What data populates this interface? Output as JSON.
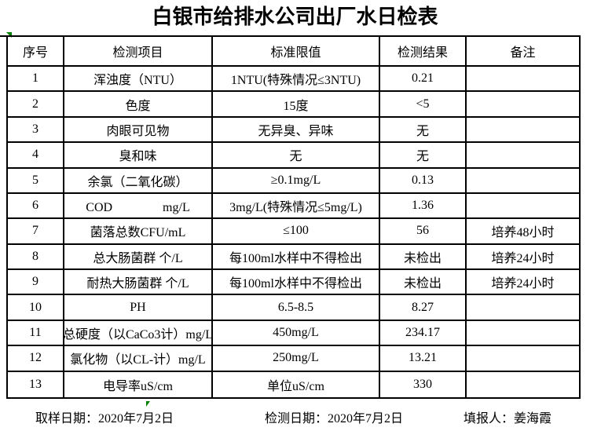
{
  "title": "白银市给排水公司出厂水日检表",
  "table": {
    "headers": [
      "序号",
      "检测项目",
      "标准限值",
      "检测结果",
      "备注"
    ],
    "rows": [
      {
        "no": "1",
        "item": "浑浊度（NTU）",
        "standard": "1NTU(特殊情况≤3NTU)",
        "result": "0.21",
        "remark": ""
      },
      {
        "no": "2",
        "item": "色度",
        "standard": "15度",
        "result": "<5",
        "remark": ""
      },
      {
        "no": "3",
        "item": "肉眼可见物",
        "standard": "无异臭、异味",
        "result": "无",
        "remark": ""
      },
      {
        "no": "4",
        "item": "臭和味",
        "standard": "无",
        "result": "无",
        "remark": ""
      },
      {
        "no": "5",
        "item": "余氯（二氧化碳）",
        "standard": "≥0.1mg/L",
        "result": "0.13",
        "remark": ""
      },
      {
        "no": "6",
        "item": "COD　　　　mg/L",
        "standard": "3mg/L(特殊情况≤5mg/L)",
        "result": "1.36",
        "remark": ""
      },
      {
        "no": "7",
        "item": "菌落总数CFU/mL",
        "standard": "≤100",
        "result": "56",
        "remark": "培养48小时"
      },
      {
        "no": "8",
        "item": "总大肠菌群 个/L",
        "standard": "每100ml水样中不得检出",
        "result": "未检出",
        "remark": "培养24小时"
      },
      {
        "no": "9",
        "item": "耐热大肠菌群 个/L",
        "standard": "每100ml水样中不得检出",
        "result": "未检出",
        "remark": "培养24小时"
      },
      {
        "no": "10",
        "item": "PH",
        "standard": "6.5-8.5",
        "result": "8.27",
        "remark": ""
      },
      {
        "no": "11",
        "item": "总硬度（以CaCo3计）mg/L",
        "standard": "450mg/L",
        "result": "234.17",
        "remark": ""
      },
      {
        "no": "12",
        "item": "氯化物（以CL-计）mg/L",
        "standard": "250mg/L",
        "result": "13.21",
        "remark": ""
      },
      {
        "no": "13",
        "item": "电导率uS/cm",
        "standard": "单位uS/cm",
        "result": "330",
        "remark": ""
      }
    ]
  },
  "footer": {
    "sampling_date": "取样日期：2020年7月2日",
    "testing_date": "检测日期：2020年7月2日",
    "reporter": "填报人：姜海霞"
  },
  "colors": {
    "flag_green": "#008000",
    "grid_line": "#000000",
    "background": "#ffffff",
    "text": "#000000"
  }
}
